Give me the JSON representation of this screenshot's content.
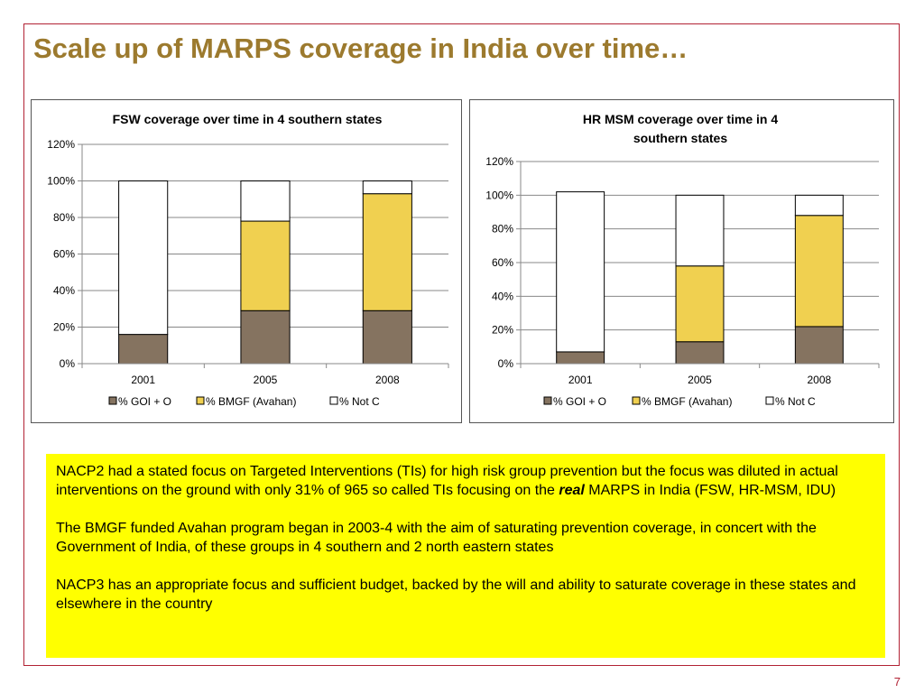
{
  "slide": {
    "title": "Scale up of MARPS coverage in India over time…",
    "page_number": "7",
    "colors": {
      "title": "#9c7a2e",
      "frame": "#b22234",
      "note_background": "#ffff00"
    }
  },
  "chart_data": [
    {
      "type": "bar",
      "stacked": true,
      "title": "FSW coverage over time in 4 southern states",
      "categories": [
        "2001",
        "2005",
        "2008"
      ],
      "series": [
        {
          "name": "% GOI + O",
          "color": "#857360",
          "values": [
            16,
            29,
            29
          ]
        },
        {
          "name": "% BMGF (Avahan)",
          "color": "#f0d050",
          "values": [
            0,
            49,
            64
          ]
        },
        {
          "name": "% Not C",
          "color": "#ffffff",
          "values": [
            84,
            22,
            7
          ]
        }
      ],
      "ylim": [
        0,
        120
      ],
      "yticks": [
        "0%",
        "20%",
        "40%",
        "60%",
        "80%",
        "100%",
        "120%"
      ],
      "grid": true,
      "legend_position": "bottom"
    },
    {
      "type": "bar",
      "stacked": true,
      "title": "HR MSM coverage over time in 4 southern states",
      "categories": [
        "2001",
        "2005",
        "2008"
      ],
      "series": [
        {
          "name": "% GOI + O",
          "color": "#857360",
          "values": [
            7,
            13,
            22
          ]
        },
        {
          "name": "% BMGF (Avahan)",
          "color": "#f0d050",
          "values": [
            0,
            45,
            66
          ]
        },
        {
          "name": "% Not C",
          "color": "#ffffff",
          "values": [
            95,
            42,
            12
          ]
        }
      ],
      "ylim": [
        0,
        120
      ],
      "yticks": [
        "0%",
        "20%",
        "40%",
        "60%",
        "80%",
        "100%",
        "120%"
      ],
      "grid": true,
      "legend_position": "bottom"
    }
  ],
  "notes": {
    "p1_part1": "NACP2 had a stated focus on Targeted Interventions (TIs) for high risk group prevention but the focus was diluted in actual interventions on the ground with only 31% of 965 so called TIs focusing on the ",
    "p1_emphasis": "real",
    "p1_part2": " MARPS in India (FSW, HR-MSM, IDU)",
    "p2": "The BMGF funded Avahan program began in 2003-4 with the aim of saturating prevention coverage, in concert with the Government of India, of these groups in 4 southern and 2 north eastern states",
    "p3": "NACP3 has an appropriate focus and sufficient budget, backed by the will and ability to saturate coverage in these states and elsewhere in the country"
  }
}
